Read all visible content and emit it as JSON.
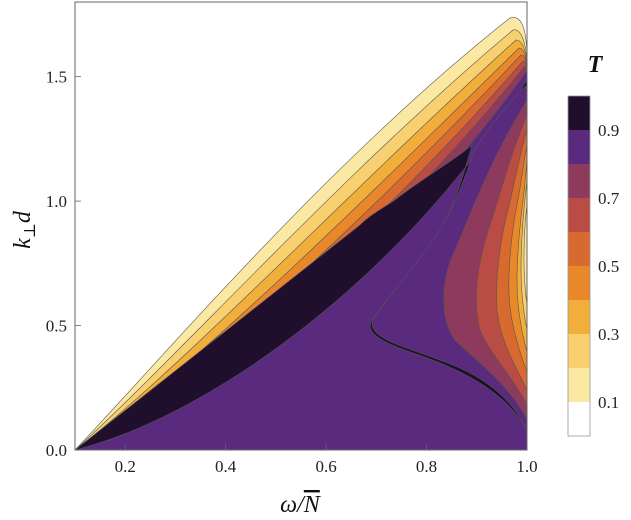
{
  "chart_data": {
    "type": "contour",
    "xlabel": "ω/N̄",
    "ylabel": "k⊥d",
    "xlim": [
      0.1,
      1.0
    ],
    "ylim": [
      0.0,
      1.8
    ],
    "x_ticks": [
      "0.2",
      "0.4",
      "0.6",
      "0.8",
      "1.0"
    ],
    "x_tick_values": [
      0.2,
      0.4,
      0.6,
      0.8,
      1.0
    ],
    "y_ticks": [
      "0.0",
      "0.5",
      "1.0",
      "1.5"
    ],
    "y_tick_values": [
      0.0,
      0.5,
      1.0,
      1.5
    ],
    "colorbar": {
      "title": "T",
      "tick_labels": [
        "0.1",
        "0.3",
        "0.5",
        "0.7",
        "0.9"
      ],
      "tick_values": [
        0.1,
        0.3,
        0.5,
        0.7,
        0.9
      ],
      "levels": [
        0.0,
        0.1,
        0.2,
        0.3,
        0.4,
        0.5,
        0.6,
        0.7,
        0.8,
        0.9,
        1.0
      ],
      "colors": [
        "#ffffff",
        "#fbe9a3",
        "#f8d070",
        "#f2ae3a",
        "#e9882b",
        "#d86a2f",
        "#b94c44",
        "#8e3a5c",
        "#5a2a7e",
        "#1f0f2c"
      ]
    },
    "outer_boundary": {
      "description": "propagating region, T > 0",
      "x": [
        0.1,
        0.2,
        0.3,
        0.4,
        0.5,
        0.6,
        0.7,
        0.8,
        0.9,
        0.96,
        1.0
      ],
      "y": [
        0.0,
        0.22,
        0.42,
        0.62,
        0.8,
        0.99,
        1.18,
        1.38,
        1.6,
        1.72,
        1.6
      ]
    },
    "inner_region_T_above_0_9": {
      "x": [
        0.1,
        0.2,
        0.3,
        0.4,
        0.5,
        0.6,
        0.7,
        0.8,
        0.9,
        1.0
      ],
      "y": [
        0.0,
        0.12,
        0.25,
        0.38,
        0.52,
        0.68,
        0.85,
        1.03,
        1.27,
        1.55
      ]
    },
    "lobe_region": {
      "description": "intermediate-T lobe near ω/N̄ between 0.7 and 1.0",
      "x_range": [
        0.7,
        1.0
      ],
      "y_range": [
        0.1,
        1.5
      ]
    }
  }
}
